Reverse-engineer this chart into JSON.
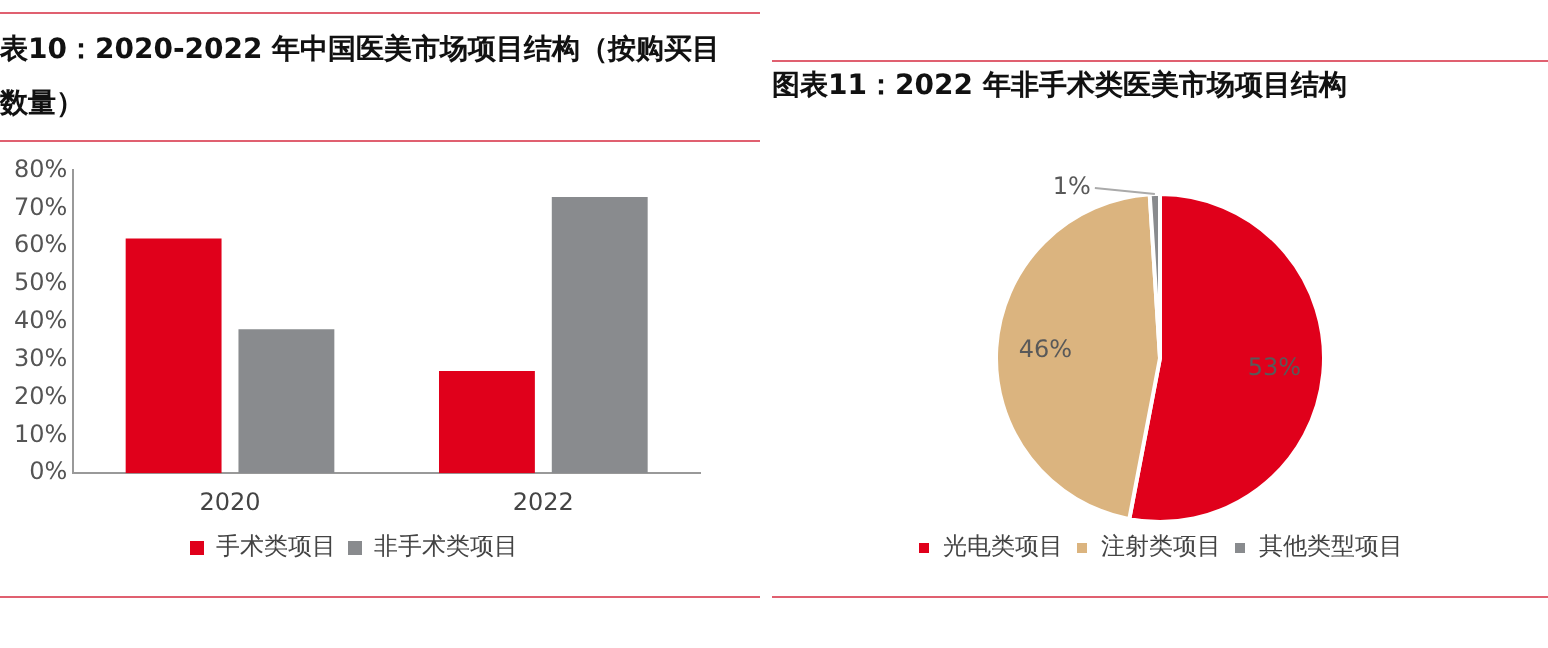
{
  "chart_data": [
    {
      "type": "bar",
      "title": "表10：2020-2022 年中国医美市场项目结构（按购买目数量）",
      "categories": [
        "2020",
        "2022"
      ],
      "series": [
        {
          "name": "手术类项目",
          "color": "#e0001b",
          "values": [
            62,
            27
          ]
        },
        {
          "name": "非手术类项目",
          "color": "#898b8e",
          "values": [
            38,
            73
          ]
        }
      ],
      "ylim": [
        0,
        80
      ],
      "yticks": [
        {
          "value": 0,
          "label": "0%"
        },
        {
          "value": 10,
          "label": "10%"
        },
        {
          "value": 20,
          "label": "20%"
        },
        {
          "value": 30,
          "label": "30%"
        },
        {
          "value": 40,
          "label": "40%"
        },
        {
          "value": 50,
          "label": "50%"
        },
        {
          "value": 60,
          "label": "60%"
        },
        {
          "value": 70,
          "label": "70%"
        },
        {
          "value": 80,
          "label": "80%"
        }
      ],
      "grid": false,
      "legend": "bottom"
    },
    {
      "type": "pie",
      "title": "图表11：2022 年非手术类医美市场项目结构",
      "categories": [
        "光电类项目",
        "注射类项目",
        "其他类型项目"
      ],
      "values": [
        53,
        46,
        1
      ],
      "colors": [
        "#e0001b",
        "#dbb47f",
        "#898b8e"
      ],
      "value_labels": [
        "53%",
        "46%",
        "1%"
      ],
      "legend": "bottom"
    }
  ]
}
